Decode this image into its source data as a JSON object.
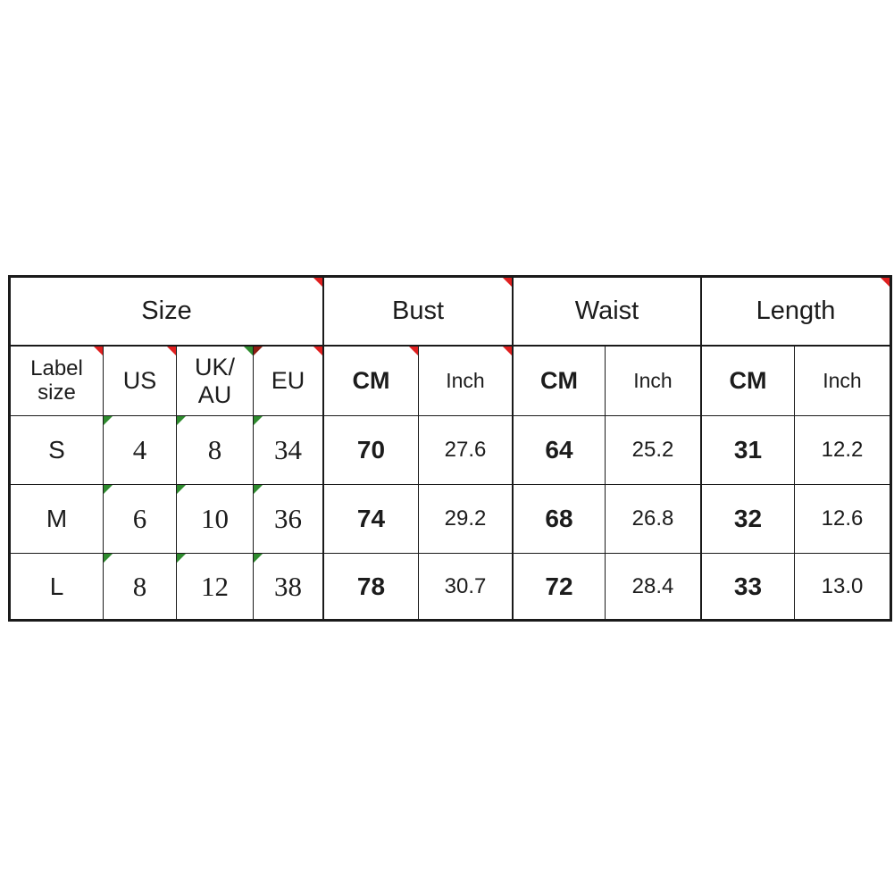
{
  "chart_data": {
    "type": "table",
    "group_headers": [
      {
        "label": "Size"
      },
      {
        "label": "Bust"
      },
      {
        "label": "Waist"
      },
      {
        "label": "Length"
      }
    ],
    "sub_headers": [
      "Label\nsize",
      "US",
      "UK/\nAU",
      "EU",
      "CM",
      "Inch",
      "CM",
      "Inch",
      "CM",
      "Inch"
    ],
    "rows": [
      [
        "S",
        "4",
        "8",
        "34",
        "70",
        "27.6",
        "64",
        "25.2",
        "31",
        "12.2"
      ],
      [
        "M",
        "6",
        "10",
        "36",
        "74",
        "29.2",
        "68",
        "26.8",
        "32",
        "12.6"
      ],
      [
        "L",
        "8",
        "12",
        "38",
        "78",
        "30.7",
        "72",
        "28.4",
        "33",
        "13.0"
      ]
    ],
    "units": {
      "metric": "CM",
      "imperial": "Inch"
    },
    "layout_hints": {
      "grid": "on",
      "marker_cells_red_top_right": [
        "Size",
        "Bust",
        "Length",
        "Label size",
        "US",
        "EU",
        "Bust CM",
        "Bust Inch"
      ],
      "marker_cells_green_top_left": [
        "S-US",
        "S-UK/AU",
        "S-EU",
        "M-US",
        "M-UK/AU",
        "M-EU",
        "L-US",
        "L-UK/AU",
        "L-EU"
      ]
    }
  },
  "colors": {
    "border": "#1a1a1a",
    "text": "#1c1c1c",
    "marker_red": "#e02020",
    "marker_dark_red": "#8d1c12",
    "marker_green": "#2e8b2e",
    "background": "#ffffff"
  }
}
